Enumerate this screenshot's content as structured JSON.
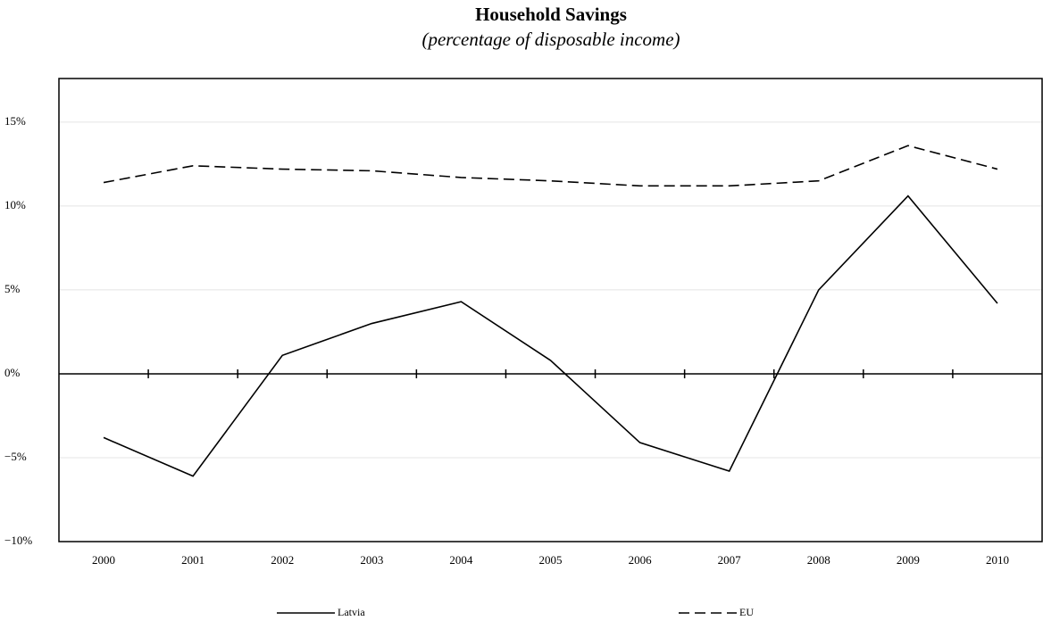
{
  "chart_data": {
    "type": "line",
    "title": "Household Savings",
    "subtitle": "(percentage of disposable income)",
    "categories": [
      "2000",
      "2001",
      "2002",
      "2003",
      "2004",
      "2005",
      "2006",
      "2007",
      "2008",
      "2009",
      "2010"
    ],
    "series": [
      {
        "name": "Latvia",
        "color": "#000000",
        "line_style": "solid",
        "values": [
          -3.8,
          -6.1,
          1.1,
          3.0,
          4.3,
          0.8,
          -4.1,
          -5.8,
          5.0,
          10.6,
          4.2
        ]
      },
      {
        "name": "EU",
        "color": "#000000",
        "line_style": "dashed",
        "values": [
          11.4,
          12.4,
          12.2,
          12.1,
          11.7,
          11.5,
          11.2,
          11.2,
          11.5,
          13.6,
          12.2
        ]
      }
    ],
    "ylim": [
      -10,
      17.6
    ],
    "yticks": [
      {
        "value": -10,
        "label": "−10%"
      },
      {
        "value": -5,
        "label": "−5%"
      },
      {
        "value": 0,
        "label": "0%"
      },
      {
        "value": 5,
        "label": "5%"
      },
      {
        "value": 10,
        "label": "10%"
      },
      {
        "value": 15,
        "label": "15%"
      }
    ],
    "grid": true,
    "legend": "bottom"
  }
}
